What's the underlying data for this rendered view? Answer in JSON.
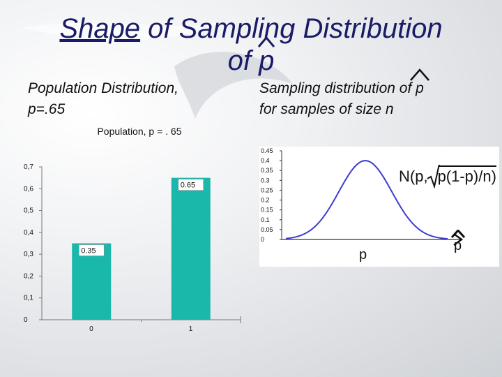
{
  "slide": {
    "title_underlined": "Shape",
    "title_rest": " of Sampling Distribution",
    "title_line2": "of ",
    "title_p": "p",
    "left_heading_line1": "Population Distribution,",
    "left_heading_line2": "p=.65",
    "right_heading_line1": "Sampling distribution of ",
    "right_heading_p": "p",
    "right_heading_line2": "for samples of size n"
  },
  "chart_data": [
    {
      "type": "bar",
      "title": "Population, p = . 65",
      "categories": [
        "0",
        "1"
      ],
      "values": [
        0.35,
        0.65
      ],
      "data_labels": [
        "0.35",
        "0.65"
      ],
      "yticks": [
        "0",
        "0,1",
        "0,2",
        "0,3",
        "0,4",
        "0,5",
        "0,6",
        "0,7"
      ],
      "ylim": [
        0,
        0.7
      ],
      "grid": false,
      "bar_color": "#1ab8ab"
    },
    {
      "type": "line",
      "title": "",
      "xlabel": "p",
      "x_end_label": "p",
      "formula_left": "N(p,",
      "formula_sqrt": "p(1-p)/n)",
      "yticks": [
        "0",
        "0.05",
        "0.1",
        "0.15",
        "0.2",
        "0.25",
        "0.3",
        "0.35",
        "0.4",
        "0.45"
      ],
      "ylim": [
        0,
        0.45
      ],
      "peak": 0.4,
      "curve_color": "#3b3bd1"
    }
  ]
}
